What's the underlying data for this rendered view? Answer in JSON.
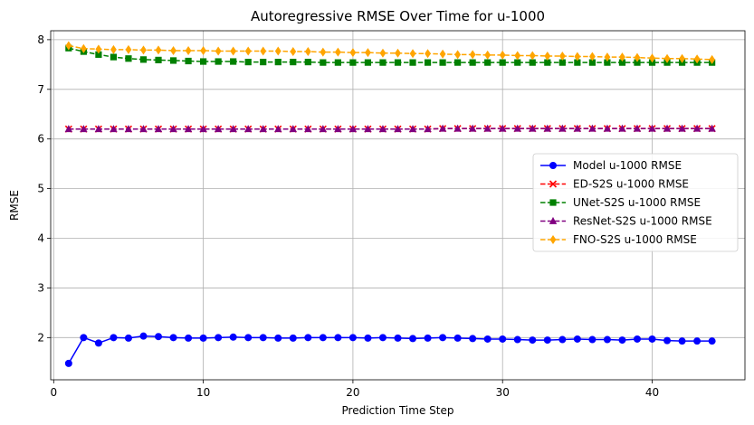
{
  "chart_data": {
    "type": "line",
    "title": "Autoregressive RMSE Over Time for u-1000",
    "xlabel": "Prediction Time Step",
    "ylabel": "RMSE",
    "xlim": [
      -0.2,
      46.2
    ],
    "ylim": [
      1.15,
      8.18
    ],
    "xticks": [
      0,
      10,
      20,
      30,
      40
    ],
    "yticks": [
      2,
      3,
      4,
      5,
      6,
      7,
      8
    ],
    "grid": true,
    "legend_position": "center-right",
    "x": [
      1,
      2,
      3,
      4,
      5,
      6,
      7,
      8,
      9,
      10,
      11,
      12,
      13,
      14,
      15,
      16,
      17,
      18,
      19,
      20,
      21,
      22,
      23,
      24,
      25,
      26,
      27,
      28,
      29,
      30,
      31,
      32,
      33,
      34,
      35,
      36,
      37,
      38,
      39,
      40,
      41,
      42,
      43,
      44
    ],
    "series": [
      {
        "name": "Model u-1000 RMSE",
        "color": "#0000ff",
        "dash": "solid",
        "marker": "circle",
        "values": [
          1.48,
          2.0,
          1.89,
          2.0,
          1.99,
          2.03,
          2.02,
          2.0,
          1.99,
          1.99,
          2.0,
          2.01,
          2.0,
          2.0,
          1.99,
          1.99,
          2.0,
          2.0,
          2.0,
          2.0,
          1.99,
          2.0,
          1.99,
          1.98,
          1.99,
          2.0,
          1.99,
          1.98,
          1.97,
          1.97,
          1.96,
          1.95,
          1.95,
          1.96,
          1.97,
          1.96,
          1.96,
          1.95,
          1.97,
          1.97,
          1.94,
          1.93,
          1.93,
          1.93
        ]
      },
      {
        "name": "ED-S2S u-1000 RMSE",
        "color": "#ff0000",
        "dash": "dashed",
        "marker": "x",
        "values": [
          6.2,
          6.2,
          6.2,
          6.2,
          6.2,
          6.2,
          6.2,
          6.2,
          6.2,
          6.2,
          6.2,
          6.2,
          6.2,
          6.2,
          6.2,
          6.2,
          6.2,
          6.2,
          6.2,
          6.2,
          6.2,
          6.2,
          6.2,
          6.2,
          6.2,
          6.21,
          6.21,
          6.21,
          6.21,
          6.21,
          6.21,
          6.21,
          6.21,
          6.21,
          6.21,
          6.21,
          6.21,
          6.21,
          6.21,
          6.21,
          6.21,
          6.21,
          6.21,
          6.21
        ]
      },
      {
        "name": "UNet-S2S u-1000 RMSE",
        "color": "#008000",
        "dash": "dashed",
        "marker": "square",
        "values": [
          7.83,
          7.76,
          7.7,
          7.65,
          7.62,
          7.6,
          7.59,
          7.58,
          7.57,
          7.56,
          7.56,
          7.56,
          7.55,
          7.55,
          7.55,
          7.55,
          7.55,
          7.54,
          7.54,
          7.54,
          7.54,
          7.54,
          7.54,
          7.54,
          7.54,
          7.54,
          7.54,
          7.54,
          7.54,
          7.54,
          7.54,
          7.54,
          7.54,
          7.54,
          7.54,
          7.54,
          7.54,
          7.54,
          7.54,
          7.54,
          7.54,
          7.54,
          7.54,
          7.54
        ]
      },
      {
        "name": "ResNet-S2S u-1000 RMSE",
        "color": "#800080",
        "dash": "dashed",
        "marker": "triangle",
        "values": [
          6.2,
          6.2,
          6.2,
          6.2,
          6.2,
          6.2,
          6.2,
          6.2,
          6.2,
          6.2,
          6.2,
          6.2,
          6.2,
          6.2,
          6.2,
          6.2,
          6.2,
          6.2,
          6.2,
          6.2,
          6.2,
          6.2,
          6.2,
          6.2,
          6.2,
          6.21,
          6.21,
          6.21,
          6.21,
          6.21,
          6.21,
          6.21,
          6.21,
          6.21,
          6.21,
          6.21,
          6.21,
          6.21,
          6.21,
          6.21,
          6.21,
          6.21,
          6.21,
          6.21
        ]
      },
      {
        "name": "FNO-S2S u-1000 RMSE",
        "color": "#ffa500",
        "dash": "dashed",
        "marker": "diamond",
        "values": [
          7.88,
          7.82,
          7.81,
          7.8,
          7.8,
          7.79,
          7.79,
          7.78,
          7.78,
          7.78,
          7.77,
          7.77,
          7.77,
          7.77,
          7.77,
          7.76,
          7.76,
          7.75,
          7.75,
          7.74,
          7.74,
          7.73,
          7.73,
          7.72,
          7.72,
          7.71,
          7.7,
          7.7,
          7.69,
          7.69,
          7.68,
          7.68,
          7.67,
          7.67,
          7.66,
          7.66,
          7.65,
          7.65,
          7.64,
          7.63,
          7.62,
          7.62,
          7.61,
          7.6
        ]
      }
    ]
  }
}
